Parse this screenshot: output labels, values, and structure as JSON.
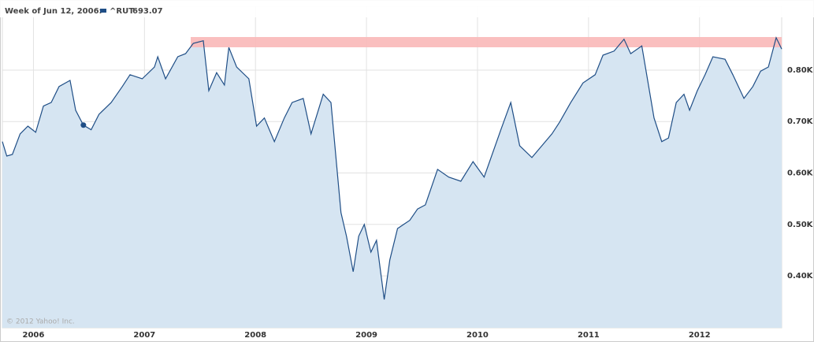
{
  "chart_data": {
    "type": "area",
    "hover": {
      "label": "Week of Jun 12, 2006:",
      "x": 2006.45,
      "value": 693.07
    },
    "series": [
      {
        "name": "^RUT",
        "color": "#1f4e86",
        "fill": "#d6e5f2",
        "x": [
          2005.72,
          2005.76,
          2005.81,
          2005.88,
          2005.95,
          2006.02,
          2006.09,
          2006.16,
          2006.23,
          2006.33,
          2006.38,
          2006.45,
          2006.52,
          2006.59,
          2006.7,
          2006.8,
          2006.87,
          2006.98,
          2007.09,
          2007.12,
          2007.19,
          2007.3,
          2007.37,
          2007.44,
          2007.53,
          2007.58,
          2007.65,
          2007.72,
          2007.76,
          2007.83,
          2007.94,
          2008.01,
          2008.08,
          2008.17,
          2008.26,
          2008.33,
          2008.43,
          2008.5,
          2008.61,
          2008.68,
          2008.77,
          2008.82,
          2008.88,
          2008.93,
          2008.98,
          2009.04,
          2009.09,
          2009.16,
          2009.21,
          2009.28,
          2009.39,
          2009.46,
          2009.53,
          2009.64,
          2009.74,
          2009.85,
          2009.96,
          2010.06,
          2010.21,
          2010.3,
          2010.38,
          2010.49,
          2010.58,
          2010.67,
          2010.74,
          2010.84,
          2010.95,
          2011.06,
          2011.13,
          2011.23,
          2011.32,
          2011.38,
          2011.48,
          2011.59,
          2011.66,
          2011.72,
          2011.79,
          2011.86,
          2011.91,
          2011.98,
          2012.05,
          2012.12,
          2012.23,
          2012.3,
          2012.4,
          2012.48,
          2012.55,
          2012.62,
          2012.69,
          2012.74
        ],
        "values": [
          661,
          633,
          636,
          676,
          691,
          679,
          730,
          737,
          768,
          780,
          722,
          693,
          684,
          714,
          737,
          768,
          791,
          783,
          806,
          826,
          783,
          826,
          832,
          852,
          857,
          760,
          795,
          771,
          844,
          806,
          783,
          691,
          707,
          661,
          707,
          737,
          745,
          676,
          753,
          737,
          523,
          477,
          408,
          477,
          500,
          446,
          469,
          354,
          431,
          492,
          508,
          530,
          538,
          607,
          592,
          584,
          622,
          592,
          684,
          737,
          653,
          630,
          653,
          676,
          699,
          737,
          775,
          791,
          829,
          837,
          860,
          832,
          847,
          707,
          661,
          668,
          737,
          753,
          722,
          760,
          791,
          826,
          821,
          791,
          745,
          768,
          798,
          806,
          863,
          841
        ]
      }
    ],
    "value_label": "693.07",
    "xlim": [
      2005.72,
      2012.74
    ],
    "xticks": [
      2006,
      2007,
      2008,
      2009,
      2010,
      2011,
      2012
    ],
    "ylim": [
      299,
      924
    ],
    "yticks": [
      {
        "value": 400,
        "label": "0.40K"
      },
      {
        "value": 500,
        "label": "0.50K"
      },
      {
        "value": 600,
        "label": "0.60K"
      },
      {
        "value": 700,
        "label": "0.70K"
      },
      {
        "value": 800,
        "label": "0.80K"
      }
    ],
    "grid": true,
    "credit": "© 2012 Yahoo! Inc."
  }
}
